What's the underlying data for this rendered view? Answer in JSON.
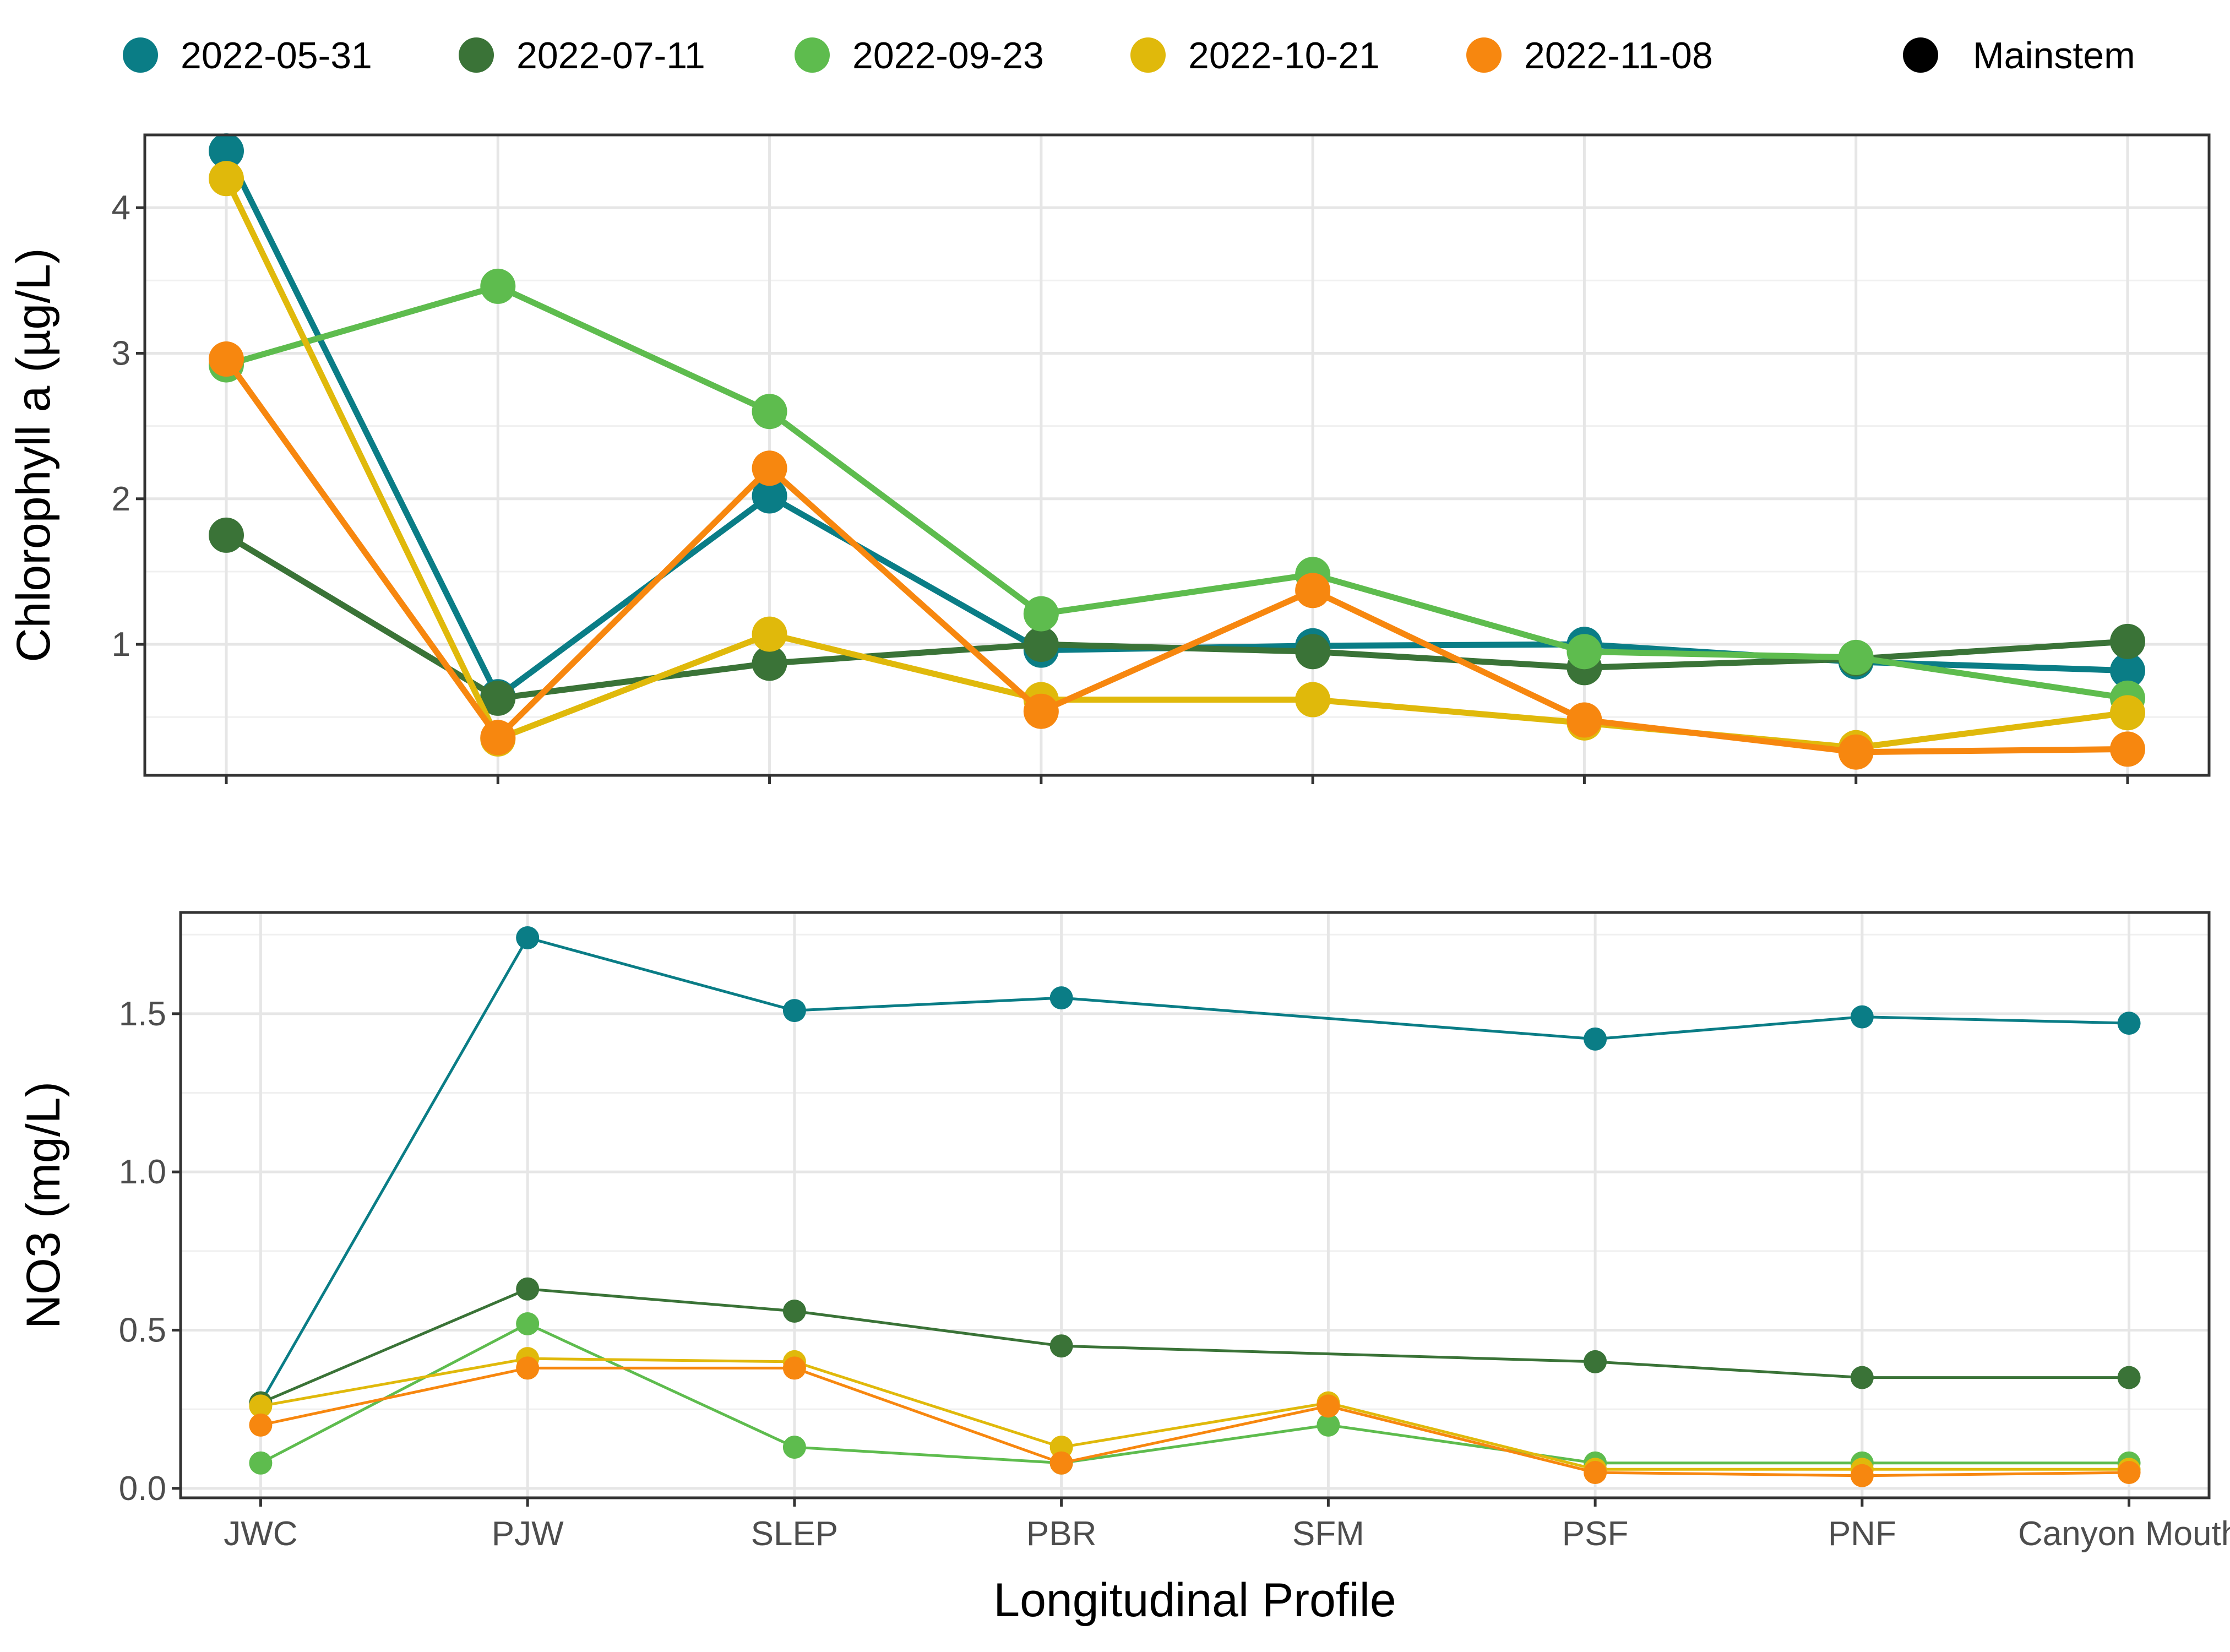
{
  "legend": {
    "items": [
      {
        "label": "2022-05-31",
        "color": "#0a7d86"
      },
      {
        "label": "2022-07-11",
        "color": "#3a7337"
      },
      {
        "label": "2022-09-23",
        "color": "#5ebc4e"
      },
      {
        "label": "2022-10-21",
        "color": "#e0b90b"
      },
      {
        "label": "2022-11-08",
        "color": "#f7870f"
      }
    ],
    "mainstem": {
      "label": "Mainstem",
      "color": "#000000"
    }
  },
  "chart_data": [
    {
      "type": "line",
      "ylabel": "Chlorophyll a (µg/L)",
      "xlabel": "",
      "categories": [
        "JWC",
        "PJW",
        "SLEP",
        "PBR",
        "SFM",
        "PSF",
        "PNF",
        "Canyon Mouth"
      ],
      "ylim": [
        0.1,
        4.5
      ],
      "yticks": [
        1,
        2,
        3,
        4
      ],
      "ytick_labels": [
        "1",
        "2",
        "3",
        "4"
      ],
      "grid": true,
      "legend": "top",
      "series": [
        {
          "name": "2022-05-31",
          "color": "#0a7d86",
          "values": [
            4.39,
            0.64,
            2.02,
            0.96,
            0.99,
            1.0,
            0.88,
            0.82
          ]
        },
        {
          "name": "2022-07-11",
          "color": "#3a7337",
          "values": [
            1.75,
            0.63,
            0.87,
            1.0,
            0.95,
            0.84,
            0.9,
            1.02
          ]
        },
        {
          "name": "2022-09-23",
          "color": "#5ebc4e",
          "values": [
            2.92,
            3.46,
            2.6,
            1.21,
            1.48,
            0.95,
            0.91,
            0.63
          ]
        },
        {
          "name": "2022-10-21",
          "color": "#e0b90b",
          "values": [
            4.2,
            0.35,
            1.07,
            0.62,
            0.62,
            0.46,
            0.29,
            0.53
          ]
        },
        {
          "name": "2022-11-08",
          "color": "#f7870f",
          "values": [
            2.96,
            0.36,
            2.21,
            0.54,
            1.37,
            0.48,
            0.26,
            0.28
          ]
        }
      ]
    },
    {
      "type": "line",
      "ylabel": "NO3 (mg/L)",
      "xlabel": "Longitudinal Profile",
      "categories": [
        "JWC",
        "PJW",
        "SLEP",
        "PBR",
        "SFM",
        "PSF",
        "PNF",
        "Canyon Mouth"
      ],
      "ylim": [
        -0.03,
        1.82
      ],
      "yticks": [
        0.0,
        0.5,
        1.0,
        1.5
      ],
      "ytick_labels": [
        "0.0",
        "0.5",
        "1.0",
        "1.5"
      ],
      "grid": true,
      "legend": "top",
      "series": [
        {
          "name": "2022-05-31",
          "color": "#0a7d86",
          "values": [
            0.27,
            1.74,
            1.51,
            1.55,
            null,
            1.42,
            1.49,
            1.47
          ]
        },
        {
          "name": "2022-07-11",
          "color": "#3a7337",
          "values": [
            0.27,
            0.63,
            0.56,
            0.45,
            null,
            0.4,
            0.35,
            0.35
          ]
        },
        {
          "name": "2022-09-23",
          "color": "#5ebc4e",
          "values": [
            0.08,
            0.52,
            0.13,
            0.08,
            0.2,
            0.08,
            0.08,
            0.08
          ]
        },
        {
          "name": "2022-10-21",
          "color": "#e0b90b",
          "values": [
            0.26,
            0.41,
            0.4,
            0.13,
            0.27,
            0.06,
            0.06,
            0.06
          ]
        },
        {
          "name": "2022-11-08",
          "color": "#f7870f",
          "values": [
            0.2,
            0.38,
            0.38,
            0.08,
            0.26,
            0.05,
            0.04,
            0.05
          ]
        }
      ]
    }
  ]
}
